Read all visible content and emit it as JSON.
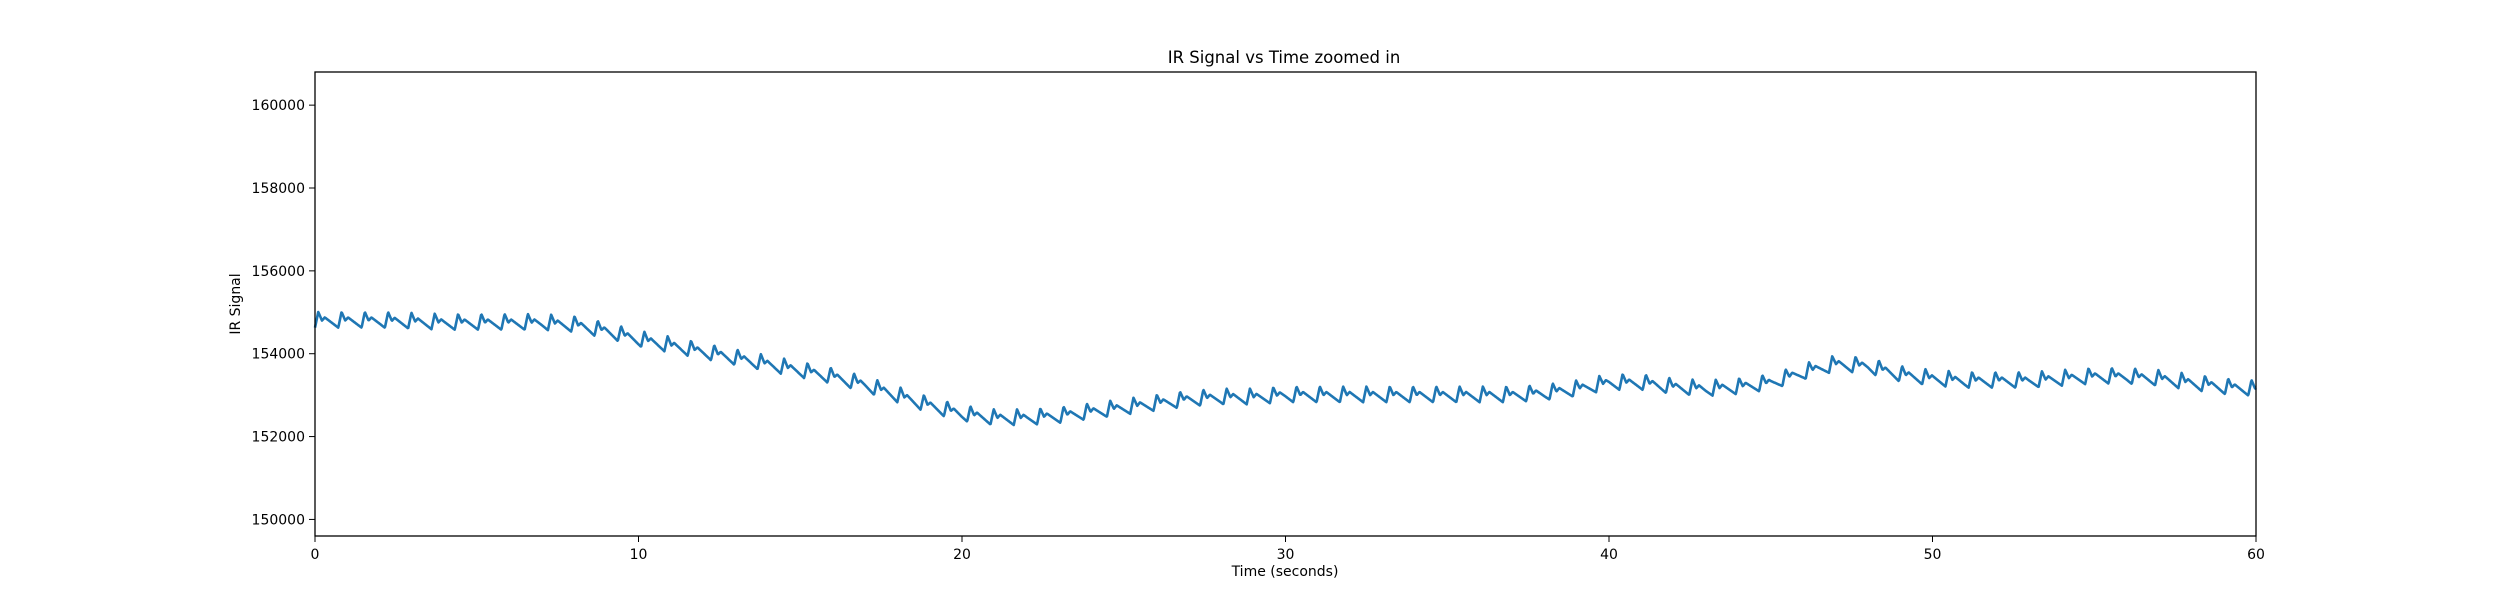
{
  "chart_data": {
    "type": "line",
    "title": "IR Signal vs Time zoomed in",
    "xlabel": "Time (seconds)",
    "ylabel": "IR Signal",
    "xlim": [
      0,
      60
    ],
    "ylim": [
      149600,
      160800
    ],
    "xticks": [
      0,
      10,
      20,
      30,
      40,
      50,
      60
    ],
    "yticks": [
      150000,
      152000,
      154000,
      156000,
      158000,
      160000
    ],
    "grid": false,
    "legend": "none",
    "color": "#1f77b4",
    "series": [
      {
        "pulse_period_s": 0.72,
        "pulse_amplitude": 380,
        "x": [
          0,
          1,
          2,
          3,
          4,
          5,
          6,
          7,
          8,
          9,
          10,
          11,
          12,
          13,
          14,
          15,
          16,
          17,
          18,
          19,
          20,
          21,
          22,
          23,
          24,
          25,
          26,
          27,
          28,
          29,
          30,
          31,
          32,
          33,
          34,
          35,
          36,
          37,
          38,
          39,
          40,
          41,
          42,
          43,
          44,
          45,
          46,
          47,
          48,
          49,
          50,
          51,
          52,
          53,
          54,
          55,
          56,
          57,
          58,
          59,
          60
        ],
        "y": [
          154800,
          154800,
          154800,
          154780,
          154750,
          154750,
          154750,
          154750,
          154700,
          154550,
          154350,
          154200,
          154050,
          153900,
          153750,
          153600,
          153450,
          153250,
          153000,
          152750,
          152550,
          152450,
          152450,
          152500,
          152600,
          152700,
          152800,
          152900,
          152950,
          152950,
          153000,
          153000,
          153000,
          153000,
          153000,
          153000,
          153000,
          153000,
          153050,
          153150,
          153300,
          153300,
          153200,
          153150,
          153200,
          153300,
          153550,
          153750,
          153700,
          153500,
          153400,
          153350,
          153350,
          153350,
          153400,
          153450,
          153450,
          153400,
          153300,
          153200,
          153150
        ]
      }
    ]
  }
}
